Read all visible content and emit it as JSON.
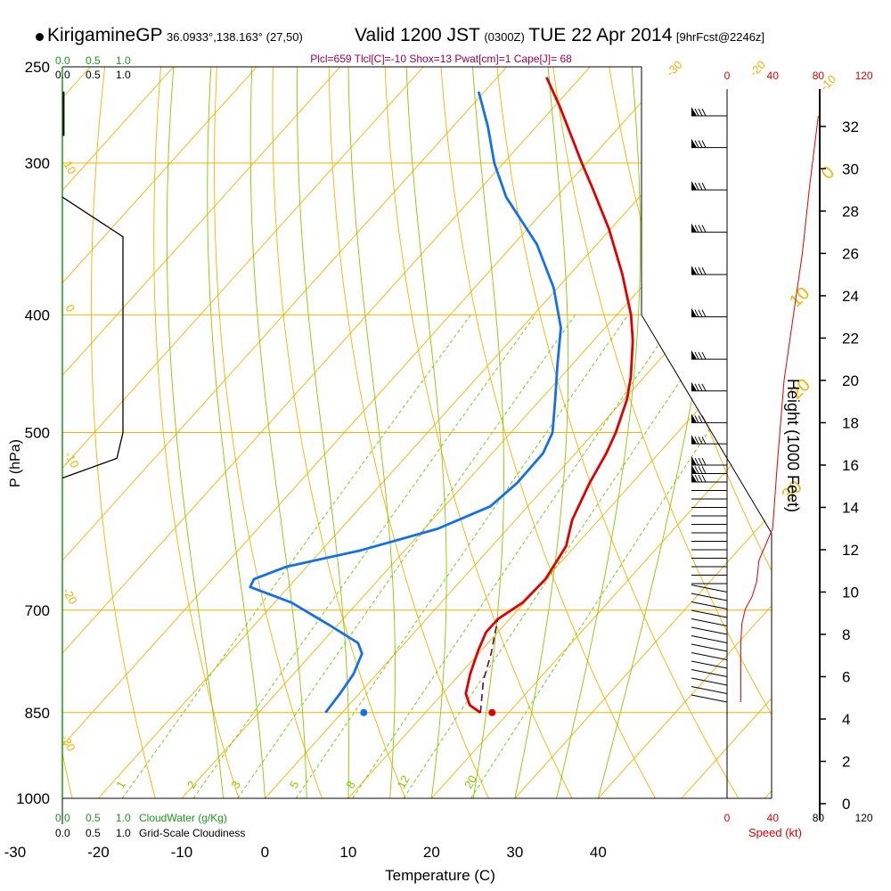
{
  "header": {
    "station": "KirigamineGP",
    "coords": "36.0933°,138.163° (27,50)",
    "valid_label": "Valid 1200 JST",
    "valid_z": "(0300Z)",
    "valid_date": "TUE 22 Apr 2014",
    "forecast": "[9hrFcst@2246z]",
    "params": "Plcl=659 Tlcl[C]=-10 Shox=13 Pwat[cm]=1 Cape[J]= 68"
  },
  "colors": {
    "isotherm": "#f0b400",
    "dry_adiabat": "#f0b400",
    "moist_adiabat": "#88c800",
    "mixing_ratio": "#66cc00",
    "temperature": "#e00000",
    "dewpoint": "#1470e6",
    "parcel": "#5a0a3c",
    "params_text": "#9a0050",
    "cloudwater": "#1a9a1a",
    "speed": "#e00000"
  },
  "scales": {
    "cloudwater_ticks": [
      "0.0",
      "0.5",
      "1.0"
    ],
    "cloudiness_ticks": [
      "0.0",
      "0.5",
      "1.0"
    ],
    "cloudwater_label": "CloudWater (g/Kg)",
    "cloudiness_label": "Grid-Scale Cloudiness",
    "speed_ticks": [
      "0",
      "40",
      "80",
      "120"
    ],
    "speed_label": "Speed (kt)"
  },
  "chart_data": {
    "type": "skew-t log-p sounding",
    "xlabel": "Temperature (C)",
    "ylabel": "P (hPa)",
    "y2label": "Height (1000 Feet)",
    "x_ticks": [
      -30,
      -20,
      -10,
      0,
      10,
      20,
      30,
      40
    ],
    "pressure_ticks": [
      250,
      300,
      400,
      500,
      700,
      850,
      1000
    ],
    "height_ticks": [
      0,
      2,
      4,
      6,
      8,
      10,
      12,
      14,
      16,
      18,
      20,
      22,
      24,
      26,
      28,
      30,
      32
    ],
    "isotherm_labels": [
      "-30",
      "-20",
      "-10",
      "0",
      "10",
      "20",
      "30"
    ],
    "dry_adiabat_labels": [
      "10",
      "0",
      "-10",
      "-20",
      "-30"
    ],
    "mixing_ratio_labels": [
      "1",
      "2",
      "3",
      "5",
      "8",
      "12",
      "20"
    ],
    "temperature_profile": [
      {
        "p": 850,
        "t": 16.6
      },
      {
        "p": 838,
        "t": 14.5
      },
      {
        "p": 820,
        "t": 12.8
      },
      {
        "p": 790,
        "t": 11.2
      },
      {
        "p": 755,
        "t": 9.6
      },
      {
        "p": 730,
        "t": 8.6
      },
      {
        "p": 712,
        "t": 8.6
      },
      {
        "p": 690,
        "t": 9.8
      },
      {
        "p": 660,
        "t": 10.0
      },
      {
        "p": 620,
        "t": 8.9
      },
      {
        "p": 590,
        "t": 6.8
      },
      {
        "p": 550,
        "t": 4.9
      },
      {
        "p": 520,
        "t": 3.7
      },
      {
        "p": 500,
        "t": 2.6
      },
      {
        "p": 470,
        "t": 0.4
      },
      {
        "p": 450,
        "t": -1.6
      },
      {
        "p": 420,
        "t": -5.3
      },
      {
        "p": 400,
        "t": -8.3
      },
      {
        "p": 370,
        "t": -13.8
      },
      {
        "p": 340,
        "t": -20.2
      },
      {
        "p": 315,
        "t": -26.5
      },
      {
        "p": 300,
        "t": -30.6
      },
      {
        "p": 270,
        "t": -39.2
      },
      {
        "p": 255,
        "t": -44.1
      }
    ],
    "dewpoint_profile": [
      {
        "p": 850,
        "td": -2.0
      },
      {
        "p": 820,
        "td": -2.3
      },
      {
        "p": 790,
        "td": -2.8
      },
      {
        "p": 760,
        "td": -4.0
      },
      {
        "p": 745,
        "td": -5.6
      },
      {
        "p": 720,
        "td": -11.0
      },
      {
        "p": 690,
        "td": -18.0
      },
      {
        "p": 670,
        "td": -24.6
      },
      {
        "p": 660,
        "td": -25.0
      },
      {
        "p": 645,
        "td": -22.5
      },
      {
        "p": 625,
        "td": -15.3
      },
      {
        "p": 600,
        "td": -8.4
      },
      {
        "p": 575,
        "td": -4.5
      },
      {
        "p": 550,
        "td": -3.8
      },
      {
        "p": 520,
        "td": -3.9
      },
      {
        "p": 500,
        "td": -5.0
      },
      {
        "p": 470,
        "td": -8.2
      },
      {
        "p": 440,
        "td": -11.7
      },
      {
        "p": 410,
        "td": -15.3
      },
      {
        "p": 380,
        "td": -20.5
      },
      {
        "p": 350,
        "td": -27.2
      },
      {
        "p": 320,
        "td": -36.0
      },
      {
        "p": 300,
        "td": -41.1
      },
      {
        "p": 280,
        "td": -45.8
      },
      {
        "p": 262,
        "td": -50.7
      }
    ],
    "surface_temperature": {
      "p": 850,
      "t": 18.0
    },
    "surface_dewpoint": {
      "p": 850,
      "td": 2.6
    },
    "parcel_path": [
      {
        "p": 850,
        "t": 16.6
      },
      {
        "p": 800,
        "t": 13.5
      },
      {
        "p": 760,
        "t": 11.5
      },
      {
        "p": 730,
        "t": 9.7
      },
      {
        "p": 712,
        "t": 8.6
      }
    ],
    "wind_speed_kt": [
      {
        "h": 4.8,
        "s": 12
      },
      {
        "h": 5.5,
        "s": 12
      },
      {
        "h": 6.5,
        "s": 12
      },
      {
        "h": 7.5,
        "s": 12
      },
      {
        "h": 8.5,
        "s": 13
      },
      {
        "h": 9.2,
        "s": 16
      },
      {
        "h": 9.8,
        "s": 22
      },
      {
        "h": 10.5,
        "s": 26
      },
      {
        "h": 11.5,
        "s": 28
      },
      {
        "h": 13.0,
        "s": 40
      },
      {
        "h": 16,
        "s": 44
      },
      {
        "h": 20,
        "s": 50
      },
      {
        "h": 23,
        "s": 58
      },
      {
        "h": 26,
        "s": 66
      },
      {
        "h": 29,
        "s": 72
      },
      {
        "h": 32.5,
        "s": 80
      }
    ],
    "wind_barb_heights": [
      4.8,
      5.2,
      5.6,
      6.0,
      6.4,
      6.8,
      7.2,
      7.6,
      8.0,
      8.4,
      8.8,
      9.2,
      9.6,
      10.0,
      10.4,
      10.8,
      11.2,
      11.6,
      12.0,
      12.4,
      12.8,
      13.2,
      13.6,
      14.0,
      14.4,
      14.8,
      15.2,
      15.6,
      16.0,
      17.0,
      18.0,
      19.5,
      21.0,
      23.0,
      25.0,
      27.0,
      29.0,
      31.0,
      32.5
    ],
    "terrain_bottom_pressure": 850,
    "cloudiness_profile": [
      {
        "p": 320,
        "c": 0.0
      },
      {
        "p": 345,
        "c": 1.0
      },
      {
        "p": 500,
        "c": 1.0
      },
      {
        "p": 525,
        "c": 0.9
      },
      {
        "p": 545,
        "c": 0.0
      }
    ],
    "cloudwater_profile": [
      {
        "p": 262,
        "c": 0.02
      },
      {
        "p": 285,
        "c": 0.02
      }
    ]
  }
}
